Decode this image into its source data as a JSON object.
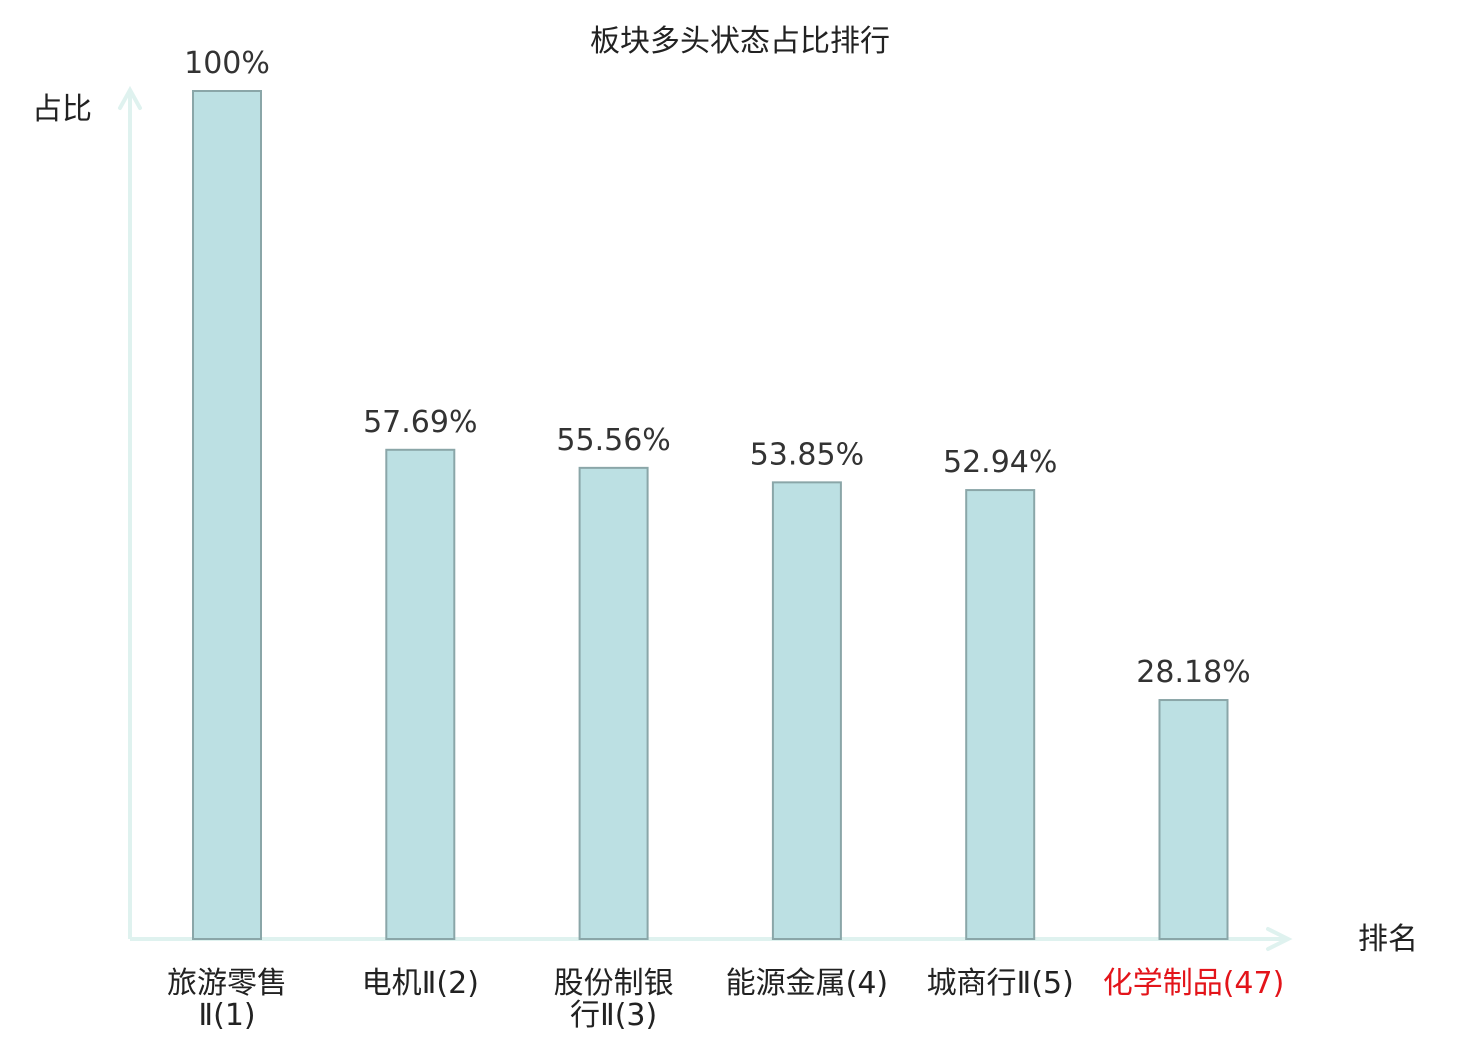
{
  "chart_data": {
    "type": "bar",
    "title": "板块多头状态占比排行",
    "ylabel": "占比",
    "xlabel": "排名",
    "ylim": [
      0,
      100
    ],
    "grid": false,
    "unit": "%",
    "categories": [
      [
        "旅游零售",
        "Ⅱ(1)"
      ],
      [
        "电机Ⅱ(2)"
      ],
      [
        "股份制银",
        "行Ⅱ(3)"
      ],
      [
        "能源金属(4)"
      ],
      [
        "城商行Ⅱ(5)"
      ],
      [
        "化学制品(47)"
      ]
    ],
    "values": [
      100,
      57.69,
      55.56,
      53.85,
      52.94,
      28.18
    ],
    "value_labels": [
      "100%",
      "57.69%",
      "55.56%",
      "53.85%",
      "52.94%",
      "28.18%"
    ],
    "highlight_index": 5
  },
  "colors": {
    "bar_fill": "#bce0e3",
    "bar_stroke": "#8aa6a8",
    "axis": "#dff2ef",
    "text": "#222222",
    "value_text": "#333333",
    "highlight_text": "#e3141a"
  }
}
